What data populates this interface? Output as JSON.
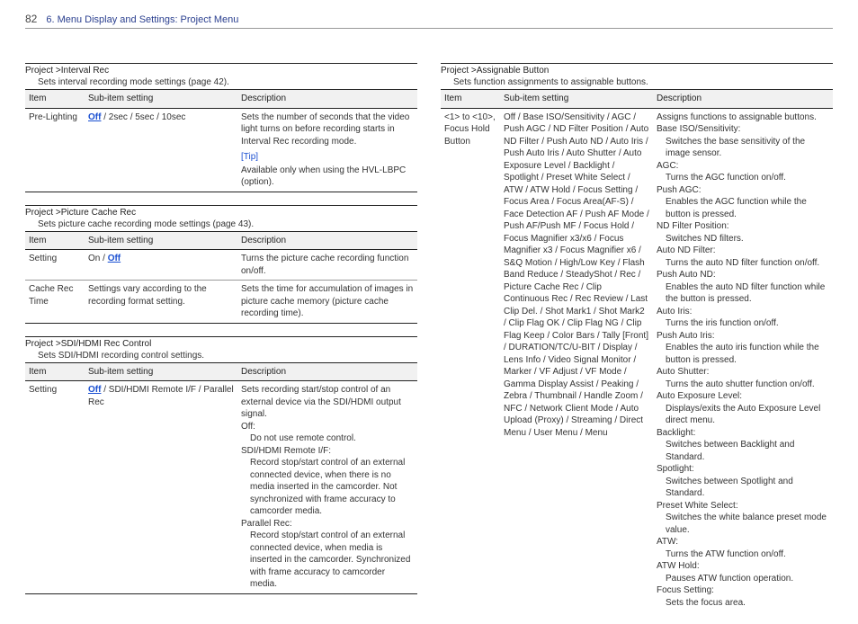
{
  "header": {
    "page_number": "82",
    "title": "6. Menu Display and Settings: Project Menu"
  },
  "labels": {
    "item": "Item",
    "sub": "Sub-item setting",
    "desc": "Description"
  },
  "left": {
    "s1": {
      "title": "Project >Interval Rec",
      "subtitle": "Sets interval recording mode settings (page 42).",
      "r1": {
        "item": "Pre-Lighting",
        "default": "Off",
        "rest": " / 2sec / 5sec / 10sec",
        "desc": "Sets the number of seconds that the video light turns on before recording starts in Interval Rec recording mode.",
        "tip": "[Tip]",
        "tipbody": "Available only when using the HVL-LBPC (option)."
      }
    },
    "s2": {
      "title": "Project >Picture Cache Rec",
      "subtitle": "Sets picture cache recording mode settings (page 43).",
      "r1": {
        "item": "Setting",
        "pre": "On / ",
        "default": "Off",
        "desc": "Turns the picture cache recording function on/off."
      },
      "r2": {
        "item": "Cache Rec Time",
        "sub": "Settings vary according to the recording format setting.",
        "desc": "Sets the time for accumulation of images in picture cache memory (picture cache recording time)."
      }
    },
    "s3": {
      "title": "Project >SDI/HDMI Rec Control",
      "subtitle": "Sets SDI/HDMI recording control settings.",
      "r1": {
        "item": "Setting",
        "default": "Off",
        "rest": " / SDI/HDMI Remote I/F / Parallel Rec",
        "d0": "Sets recording start/stop control of an external device via the SDI/HDMI output signal.",
        "d1a": "Off:",
        "d1b": "Do not use remote control.",
        "d2a": "SDI/HDMI Remote I/F:",
        "d2b": "Record stop/start control of an external connected device, when there is no media inserted in the camcorder. Not synchronized with frame accuracy to camcorder media.",
        "d3a": "Parallel Rec:",
        "d3b": "Record stop/start control of an external connected device, when media is inserted in the camcorder. Synchronized with frame accuracy to camcorder media."
      }
    }
  },
  "right": {
    "s1": {
      "title": "Project >Assignable Button",
      "subtitle": "Sets function assignments to assignable buttons.",
      "r1": {
        "item": "<1> to <10>, Focus Hold Button",
        "sub": "Off / Base ISO/Sensitivity / AGC / Push AGC / ND Filter Position / Auto ND Filter / Push Auto ND / Auto Iris / Push Auto Iris / Auto Shutter / Auto Exposure Level / Backlight / Spotlight / Preset White Select / ATW / ATW Hold / Focus Setting / Focus Area / Focus Area(AF-S) / Face Detection AF / Push AF Mode / Push AF/Push MF / Focus Hold / Focus Magnifier x3/x6 / Focus Magnifier x3 / Focus Magnifier x6 / S&Q Motion / High/Low Key / Flash Band Reduce / SteadyShot / Rec / Picture Cache Rec / Clip Continuous Rec / Rec Review / Last Clip Del. / Shot Mark1 / Shot Mark2 / Clip Flag OK / Clip Flag NG / Clip Flag Keep / Color Bars / Tally [Front] / DURATION/TC/U-BIT / Display / Lens Info / Video Signal Monitor / Marker / VF Adjust / VF Mode / Gamma Display Assist / Peaking / Zebra / Thumbnail / Handle Zoom / NFC / Network Client Mode / Auto Upload (Proxy) / Streaming / Direct Menu / User Menu / Menu",
        "d0": "Assigns functions to assignable buttons.",
        "l1a": "Base ISO/Sensitivity:",
        "l1b": "Switches the base sensitivity of the image sensor.",
        "l2a": "AGC:",
        "l2b": "Turns the AGC function on/off.",
        "l3a": "Push AGC:",
        "l3b": "Enables the AGC function while the button is pressed.",
        "l4a": "ND Filter Position:",
        "l4b": "Switches ND filters.",
        "l5a": "Auto ND Filter:",
        "l5b": "Turns the auto ND filter function on/off.",
        "l6a": "Push Auto ND:",
        "l6b": "Enables the auto ND filter function while the button is pressed.",
        "l7a": "Auto Iris:",
        "l7b": "Turns the iris function on/off.",
        "l8a": "Push Auto Iris:",
        "l8b": "Enables the auto iris function while the button is pressed.",
        "l9a": "Auto Shutter:",
        "l9b": "Turns the auto shutter function on/off.",
        "l10a": "Auto Exposure Level:",
        "l10b": "Displays/exits the Auto Exposure Level direct menu.",
        "l11a": "Backlight:",
        "l11b": "Switches between Backlight and Standard.",
        "l12a": "Spotlight:",
        "l12b": "Switches between Spotlight and Standard.",
        "l13a": "Preset White Select:",
        "l13b": "Switches the white balance preset mode value.",
        "l14a": "ATW:",
        "l14b": "Turns the ATW function on/off.",
        "l15a": "ATW Hold:",
        "l15b": "Pauses ATW function operation.",
        "l16a": "Focus Setting:",
        "l16b": "Sets the focus area."
      }
    }
  }
}
